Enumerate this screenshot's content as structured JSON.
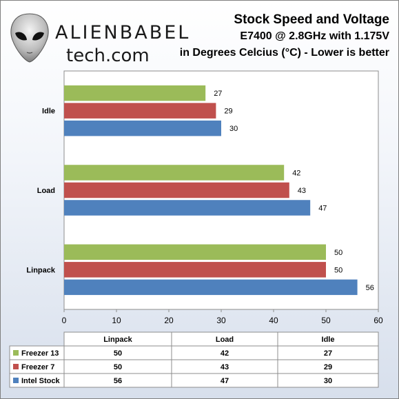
{
  "logo": {
    "top": "ALIENBABEL",
    "bottom": "tech.com"
  },
  "title": {
    "line1": "Stock Speed and Voltage",
    "line2": "E7400 @ 2.8GHz with 1.175V",
    "line3": "in Degrees Celcius  (°C) - Lower is better"
  },
  "colors": {
    "freezer13": "#9bbb59",
    "freezer7": "#c0504d",
    "intel": "#4f81bd"
  },
  "chart_data": {
    "type": "bar",
    "orientation": "horizontal",
    "categories": [
      "Idle",
      "Load",
      "Linpack"
    ],
    "series": [
      {
        "name": "Freezer 13",
        "values": [
          27,
          42,
          50
        ],
        "color": "#9bbb59"
      },
      {
        "name": "Freezer 7",
        "values": [
          29,
          43,
          50
        ],
        "color": "#c0504d"
      },
      {
        "name": "Intel Stock",
        "values": [
          30,
          47,
          56
        ],
        "color": "#4f81bd"
      }
    ],
    "xlim": [
      0,
      60
    ],
    "xticks": [
      0,
      10,
      20,
      30,
      40,
      50,
      60
    ],
    "data_table": {
      "columns": [
        "Linpack",
        "Load",
        "Idle"
      ],
      "rows": [
        {
          "label": "Freezer 13",
          "values": [
            50,
            42,
            27
          ]
        },
        {
          "label": "Freezer 7",
          "values": [
            50,
            43,
            29
          ]
        },
        {
          "label": "Intel Stock",
          "values": [
            56,
            47,
            30
          ]
        }
      ]
    }
  }
}
